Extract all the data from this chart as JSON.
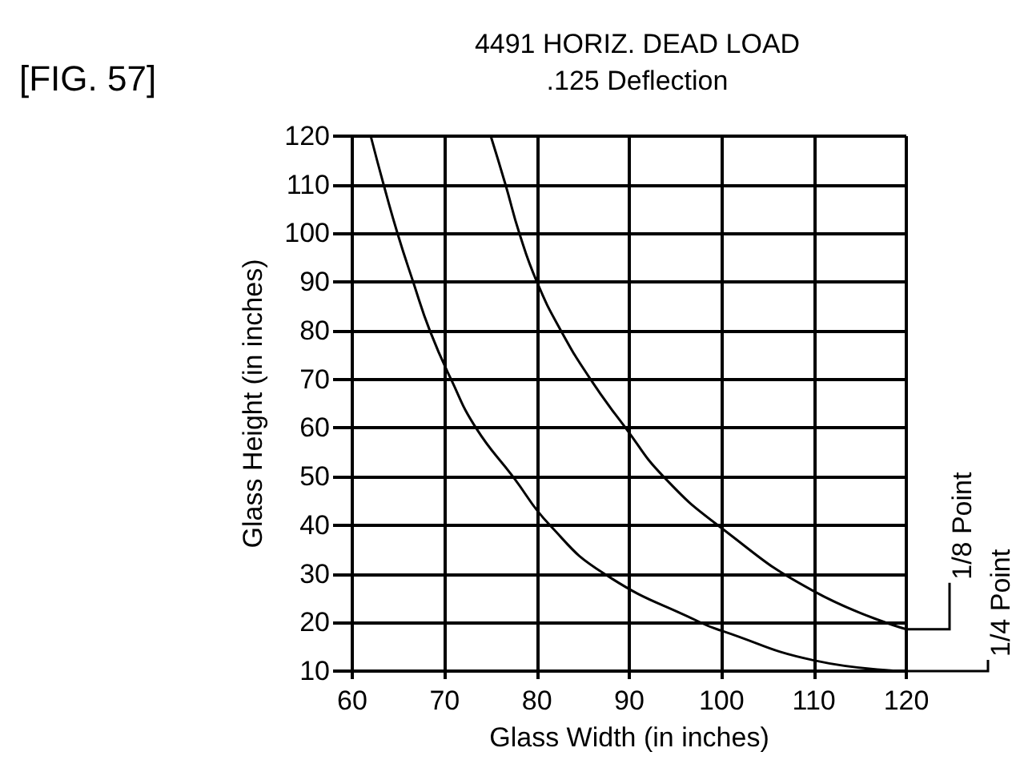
{
  "chart_data": {
    "type": "line",
    "title": "4491 HORIZ. DEAD LOAD",
    "subtitle": ".125 Deflection",
    "annotations": [
      "[FIG. 57]"
    ],
    "xlabel": "Glass Width (in inches)",
    "ylabel": "Glass Height (in inches)",
    "xlim": [
      60,
      120
    ],
    "xticks": [
      60,
      70,
      80,
      90,
      100,
      110,
      120
    ],
    "ylim": [
      10,
      120
    ],
    "yticks": [
      10,
      20,
      30,
      40,
      50,
      60,
      70,
      80,
      90,
      100,
      110,
      120
    ],
    "grid": true,
    "legend": "right",
    "marker": "none",
    "line_style": "solid",
    "series": [
      {
        "name": "1/4 Point",
        "color": "#000000",
        "x": [
          62,
          63.4,
          64.9,
          66.6,
          68.4,
          70.7,
          73.4,
          77.4,
          81.4,
          87.3,
          97.7,
          100,
          110,
          120
        ],
        "values": [
          120,
          110,
          100,
          90,
          80,
          70,
          60,
          50,
          40,
          30,
          20,
          18.3,
          12.2,
          10
        ]
      },
      {
        "name": "1/8 Point",
        "color": "#000000",
        "x": [
          75,
          76.6,
          78.1,
          80,
          82.6,
          85.8,
          89.6,
          93.7,
          100,
          110,
          120
        ],
        "values": [
          120,
          110,
          100,
          90,
          80,
          70,
          60,
          50,
          39.4,
          26.4,
          18.6
        ]
      }
    ]
  }
}
